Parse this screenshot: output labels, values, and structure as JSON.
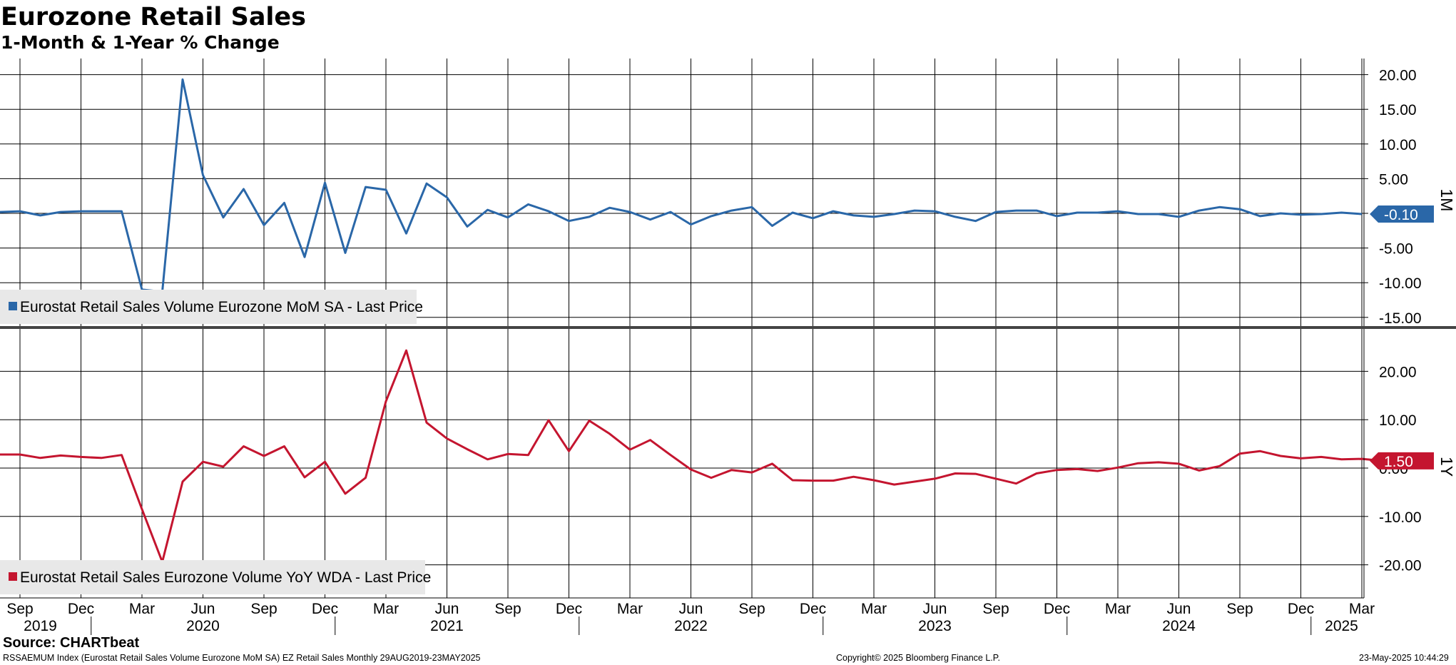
{
  "header": {
    "title": "Eurozone Retail Sales",
    "subtitle": "1-Month & 1-Year % Change"
  },
  "footer": {
    "source": "Source: CHARTbeat",
    "ticker_info": "RSSAEMUM Index (Eurostat Retail Sales Volume Eurozone MoM SA) EZ Retail Sales  Monthly 29AUG2019-23MAY2025",
    "copyright": "Copyright© 2025 Bloomberg Finance L.P.",
    "timestamp": "23-May-2025 10:44:29"
  },
  "colors": {
    "mom": "#2a67a8",
    "yoy": "#c4152f",
    "grid": "#000000",
    "legend_bg": "#e8e8e8",
    "divider": "#444444"
  },
  "chart_data": [
    {
      "type": "line",
      "panel": "top",
      "axis_label": "1M",
      "ylim": [
        -15,
        20
      ],
      "yticks": [
        "20.00",
        "15.00",
        "10.00",
        "5.00",
        "",
        "-5.00",
        "-10.00",
        "-15.00"
      ],
      "ytick_values": [
        20,
        15,
        10,
        5,
        0,
        -5,
        -10,
        -15
      ],
      "last_value_label": "-0.10",
      "legend_position": "bottom-left",
      "series": [
        {
          "name": "Eurostat Retail Sales Volume Eurozone MoM SA - Last Price",
          "color": "#2a67a8",
          "start": "2019-08",
          "values": [
            0.2,
            0.3,
            -0.3,
            0.2,
            0.3,
            0.3,
            0.3,
            -11.0,
            -11.3,
            19.3,
            5.5,
            -0.6,
            3.5,
            -1.7,
            1.5,
            -6.3,
            4.4,
            -5.7,
            3.8,
            3.4,
            -2.9,
            4.3,
            2.3,
            -1.9,
            0.5,
            -0.6,
            1.3,
            0.3,
            -1.1,
            -0.5,
            0.8,
            0.2,
            -0.9,
            0.2,
            -1.6,
            -0.4,
            0.4,
            0.9,
            -1.8,
            0.1,
            -0.7,
            0.3,
            -0.3,
            -0.5,
            -0.1,
            0.4,
            0.3,
            -0.5,
            -1.1,
            0.2,
            0.4,
            0.4,
            -0.4,
            0.1,
            0.1,
            0.3,
            -0.1,
            -0.1,
            -0.5,
            0.4,
            0.9,
            0.6,
            -0.4,
            0.0,
            -0.2,
            -0.1,
            0.1,
            -0.1
          ],
          "last_price": -0.1
        }
      ]
    },
    {
      "type": "line",
      "panel": "bottom",
      "axis_label": "1Y",
      "ylim": [
        -25,
        28
      ],
      "yticks": [
        "20.00",
        "10.00",
        "0.00",
        "-10.00",
        "-20.00"
      ],
      "ytick_values": [
        20,
        10,
        0,
        -10,
        -20
      ],
      "last_value_label": "1.50",
      "legend_position": "bottom-left",
      "series": [
        {
          "name": "Eurostat Retail Sales Eurozone Volume YoY WDA - Last Price",
          "color": "#c4152f",
          "start": "2019-08",
          "values": [
            2.8,
            2.8,
            2.1,
            2.6,
            2.3,
            2.1,
            2.7,
            -8.5,
            -19.4,
            -2.8,
            1.3,
            0.3,
            4.5,
            2.5,
            4.5,
            -1.9,
            1.3,
            -5.3,
            -2.0,
            13.8,
            24.3,
            9.4,
            6.1,
            3.9,
            1.8,
            2.9,
            2.7,
            9.9,
            3.5,
            9.8,
            7.1,
            3.8,
            5.8,
            2.7,
            -0.3,
            -2.0,
            -0.4,
            -0.9,
            0.9,
            -2.5,
            -2.6,
            -2.6,
            -1.8,
            -2.5,
            -3.4,
            -2.8,
            -2.2,
            -1.1,
            -1.2,
            -2.2,
            -3.2,
            -1.1,
            -0.4,
            -0.2,
            -0.6,
            0.1,
            1.0,
            1.2,
            0.9,
            -0.5,
            0.4,
            3.0,
            3.5,
            2.5,
            2.0,
            2.3,
            1.8,
            1.9,
            1.5
          ],
          "last_price": 1.5
        }
      ]
    }
  ],
  "x_axis": {
    "month_labels": [
      {
        "label": "Sep",
        "date": "2019-09"
      },
      {
        "label": "Dec",
        "date": "2019-12"
      },
      {
        "label": "Mar",
        "date": "2020-03"
      },
      {
        "label": "Jun",
        "date": "2020-06"
      },
      {
        "label": "Sep",
        "date": "2020-09"
      },
      {
        "label": "Dec",
        "date": "2020-12"
      },
      {
        "label": "Mar",
        "date": "2021-03"
      },
      {
        "label": "Jun",
        "date": "2021-06"
      },
      {
        "label": "Sep",
        "date": "2021-09"
      },
      {
        "label": "Dec",
        "date": "2021-12"
      },
      {
        "label": "Mar",
        "date": "2022-03"
      },
      {
        "label": "Jun",
        "date": "2022-06"
      },
      {
        "label": "Sep",
        "date": "2022-09"
      },
      {
        "label": "Dec",
        "date": "2022-12"
      },
      {
        "label": "Mar",
        "date": "2023-03"
      },
      {
        "label": "Jun",
        "date": "2023-06"
      },
      {
        "label": "Sep",
        "date": "2023-09"
      },
      {
        "label": "Dec",
        "date": "2023-12"
      },
      {
        "label": "Mar",
        "date": "2024-03"
      },
      {
        "label": "Jun",
        "date": "2024-06"
      },
      {
        "label": "Sep",
        "date": "2024-09"
      },
      {
        "label": "Dec",
        "date": "2024-12"
      },
      {
        "label": "Mar",
        "date": "2025-03"
      }
    ],
    "year_labels": [
      {
        "label": "2019",
        "date": "2019-10"
      },
      {
        "label": "2020",
        "date": "2020-06"
      },
      {
        "label": "2021",
        "date": "2021-06"
      },
      {
        "label": "2022",
        "date": "2022-06"
      },
      {
        "label": "2023",
        "date": "2023-06"
      },
      {
        "label": "2024",
        "date": "2024-06"
      },
      {
        "label": "2025",
        "date": "2025-02"
      }
    ],
    "year_boundaries": [
      "2020-01",
      "2021-01",
      "2022-01",
      "2023-01",
      "2024-01",
      "2025-01"
    ]
  }
}
